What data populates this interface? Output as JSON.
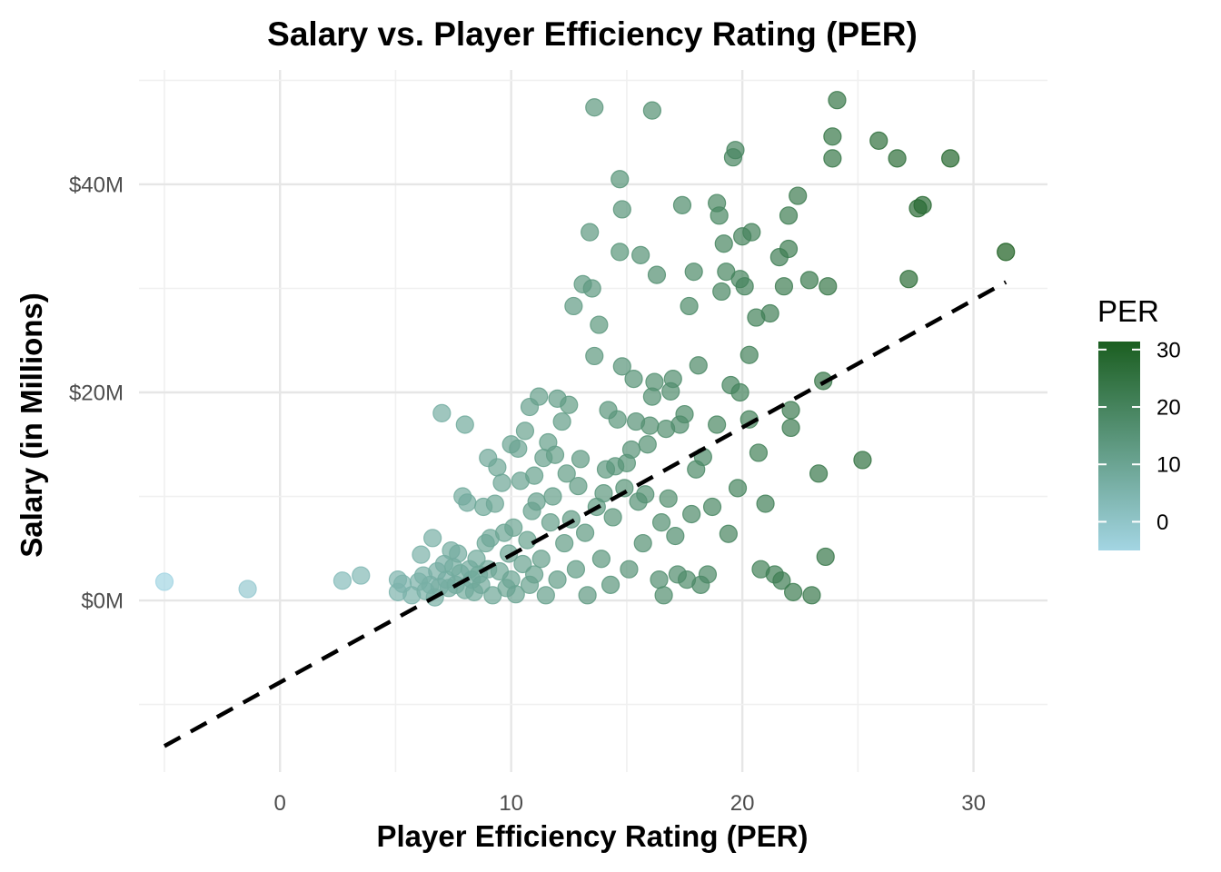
{
  "colors": {
    "low": "#a3d5e3",
    "high": "#1b5e20",
    "trend": "#000000",
    "background": "#ffffff"
  },
  "chart_data": {
    "type": "scatter",
    "title": "Salary vs. Player Efficiency Rating (PER)",
    "xlabel": "Player Efficiency Rating (PER)",
    "ylabel": "Salary (in Millions)",
    "xlim": [
      -6.1,
      33.2
    ],
    "ylim": [
      -16.5,
      51
    ],
    "x_ticks": [
      0,
      10,
      20,
      30
    ],
    "x_tick_labels": [
      "0",
      "10",
      "20",
      "30"
    ],
    "y_ticks": [
      0,
      20,
      40
    ],
    "y_tick_labels": [
      "$0M",
      "$20M",
      "$40M"
    ],
    "grid": true,
    "legend": {
      "title": "PER",
      "position": "right",
      "type": "colorbar",
      "range": [
        -5,
        31.4
      ],
      "ticks": [
        0,
        10,
        20,
        30
      ],
      "tick_labels": [
        "0",
        "10",
        "20",
        "30"
      ]
    },
    "trend_line": {
      "style": "dashed",
      "x": [
        -5,
        31.4
      ],
      "y": [
        -14,
        30.6
      ]
    },
    "points": [
      [
        -5,
        1.8
      ],
      [
        -1.4,
        1.1
      ],
      [
        2.7,
        1.9
      ],
      [
        3.5,
        2.4
      ],
      [
        5.1,
        0.8
      ],
      [
        5.1,
        2.0
      ],
      [
        5.3,
        1.6
      ],
      [
        5.7,
        0.5
      ],
      [
        6,
        1.8
      ],
      [
        6.1,
        4.4
      ],
      [
        6.2,
        2.4
      ],
      [
        6.3,
        0.9
      ],
      [
        6.5,
        1.5
      ],
      [
        6.6,
        6.0
      ],
      [
        6.7,
        0.3
      ],
      [
        6.8,
        2.8
      ],
      [
        6.9,
        1.3
      ],
      [
        7,
        18.0
      ],
      [
        7.1,
        3.5
      ],
      [
        7.2,
        2.0
      ],
      [
        7.3,
        1.2
      ],
      [
        7.4,
        4.8
      ],
      [
        7.5,
        3.2
      ],
      [
        7.6,
        1.5
      ],
      [
        7.7,
        4.5
      ],
      [
        7.8,
        2.6
      ],
      [
        7.9,
        10.0
      ],
      [
        8,
        16.9
      ],
      [
        8,
        1.0
      ],
      [
        8.1,
        9.4
      ],
      [
        8.2,
        3.0
      ],
      [
        8.3,
        2.0
      ],
      [
        8.4,
        0.8
      ],
      [
        8.5,
        4.0
      ],
      [
        8.6,
        2.5
      ],
      [
        8.7,
        1.5
      ],
      [
        8.8,
        9.0
      ],
      [
        8.9,
        5.5
      ],
      [
        9,
        13.7
      ],
      [
        9,
        3.0
      ],
      [
        9.1,
        6.0
      ],
      [
        9.2,
        0.5
      ],
      [
        9.3,
        9.3
      ],
      [
        9.4,
        12.8
      ],
      [
        9.5,
        2.8
      ],
      [
        9.6,
        11.3
      ],
      [
        9.7,
        6.5
      ],
      [
        9.8,
        1.2
      ],
      [
        9.9,
        4.5
      ],
      [
        10,
        15.0
      ],
      [
        10,
        2.0
      ],
      [
        10.1,
        7.0
      ],
      [
        10.2,
        0.6
      ],
      [
        10.3,
        14.6
      ],
      [
        10.4,
        11.5
      ],
      [
        10.5,
        3.5
      ],
      [
        10.6,
        16.3
      ],
      [
        10.7,
        5.8
      ],
      [
        10.8,
        1.5
      ],
      [
        10.8,
        18.6
      ],
      [
        10.9,
        8.6
      ],
      [
        11,
        12.0
      ],
      [
        11,
        2.5
      ],
      [
        11.1,
        9.5
      ],
      [
        11.2,
        19.6
      ],
      [
        11.3,
        4.0
      ],
      [
        11.4,
        13.7
      ],
      [
        11.5,
        0.5
      ],
      [
        11.6,
        15.2
      ],
      [
        11.7,
        7.5
      ],
      [
        11.8,
        10.0
      ],
      [
        11.9,
        14.0
      ],
      [
        12,
        2.0
      ],
      [
        12,
        19.4
      ],
      [
        12.2,
        17.2
      ],
      [
        12.3,
        5.5
      ],
      [
        12.4,
        12.2
      ],
      [
        12.5,
        18.8
      ],
      [
        12.6,
        7.8
      ],
      [
        12.7,
        28.3
      ],
      [
        12.8,
        3.0
      ],
      [
        12.9,
        11.0
      ],
      [
        13,
        13.6
      ],
      [
        13.1,
        30.4
      ],
      [
        13.2,
        6.5
      ],
      [
        13.3,
        0.5
      ],
      [
        13.4,
        35.4
      ],
      [
        13.5,
        30.0
      ],
      [
        13.6,
        23.5
      ],
      [
        13.6,
        47.4
      ],
      [
        13.7,
        9.0
      ],
      [
        13.8,
        26.5
      ],
      [
        13.9,
        4.0
      ],
      [
        14,
        10.3
      ],
      [
        14.1,
        12.6
      ],
      [
        14.2,
        18.3
      ],
      [
        14.3,
        1.5
      ],
      [
        14.4,
        8.0
      ],
      [
        14.5,
        12.9
      ],
      [
        14.6,
        17.4
      ],
      [
        14.7,
        33.5
      ],
      [
        14.7,
        40.5
      ],
      [
        14.8,
        22.5
      ],
      [
        14.8,
        37.6
      ],
      [
        14.9,
        10.8
      ],
      [
        15,
        13.2
      ],
      [
        15.1,
        3.0
      ],
      [
        15.2,
        14.5
      ],
      [
        15.3,
        21.3
      ],
      [
        15.4,
        17.2
      ],
      [
        15.5,
        9.5
      ],
      [
        15.6,
        33.2
      ],
      [
        15.7,
        5.5
      ],
      [
        15.8,
        10.2
      ],
      [
        15.9,
        15.0
      ],
      [
        16,
        16.8
      ],
      [
        16.1,
        19.6
      ],
      [
        16.1,
        47.1
      ],
      [
        16.2,
        21.0
      ],
      [
        16.3,
        31.3
      ],
      [
        16.4,
        2.0
      ],
      [
        16.5,
        7.5
      ],
      [
        16.6,
        0.5
      ],
      [
        16.7,
        16.5
      ],
      [
        16.8,
        9.8
      ],
      [
        16.9,
        20.1
      ],
      [
        17,
        21.3
      ],
      [
        17.1,
        6.2
      ],
      [
        17.2,
        2.5
      ],
      [
        17.3,
        16.9
      ],
      [
        17.4,
        38.0
      ],
      [
        17.5,
        17.9
      ],
      [
        17.6,
        2.0
      ],
      [
        17.7,
        28.3
      ],
      [
        17.8,
        8.3
      ],
      [
        17.9,
        31.6
      ],
      [
        18,
        12.6
      ],
      [
        18.1,
        22.6
      ],
      [
        18.2,
        1.5
      ],
      [
        18.3,
        13.8
      ],
      [
        18.5,
        2.5
      ],
      [
        18.7,
        9.0
      ],
      [
        18.9,
        38.2
      ],
      [
        18.9,
        16.9
      ],
      [
        19,
        37.0
      ],
      [
        19.1,
        29.7
      ],
      [
        19.2,
        34.3
      ],
      [
        19.3,
        31.6
      ],
      [
        19.4,
        6.4
      ],
      [
        19.5,
        20.7
      ],
      [
        19.6,
        42.6
      ],
      [
        19.7,
        43.3
      ],
      [
        19.8,
        10.8
      ],
      [
        19.9,
        30.9
      ],
      [
        19.9,
        20.0
      ],
      [
        20,
        35.0
      ],
      [
        20.1,
        30.2
      ],
      [
        20.3,
        17.4
      ],
      [
        20.3,
        23.6
      ],
      [
        20.4,
        35.4
      ],
      [
        20.6,
        27.2
      ],
      [
        20.7,
        14.2
      ],
      [
        20.8,
        3.0
      ],
      [
        21,
        9.3
      ],
      [
        21.2,
        27.6
      ],
      [
        21.4,
        2.5
      ],
      [
        21.6,
        33.0
      ],
      [
        21.7,
        1.9
      ],
      [
        21.8,
        30.2
      ],
      [
        22,
        33.8
      ],
      [
        22,
        37.0
      ],
      [
        22.1,
        18.3
      ],
      [
        22.1,
        16.6
      ],
      [
        22.2,
        0.8
      ],
      [
        22.4,
        38.9
      ],
      [
        22.9,
        30.8
      ],
      [
        23,
        0.5
      ],
      [
        23.3,
        12.2
      ],
      [
        23.5,
        21.1
      ],
      [
        23.6,
        4.2
      ],
      [
        23.7,
        30.2
      ],
      [
        23.9,
        42.5
      ],
      [
        23.9,
        44.6
      ],
      [
        24.1,
        48.1
      ],
      [
        25.2,
        13.5
      ],
      [
        25.9,
        44.2
      ],
      [
        26.7,
        42.5
      ],
      [
        27.2,
        30.9
      ],
      [
        27.6,
        37.7
      ],
      [
        27.8,
        38.0
      ],
      [
        29,
        42.5
      ],
      [
        31.4,
        33.5
      ]
    ]
  }
}
